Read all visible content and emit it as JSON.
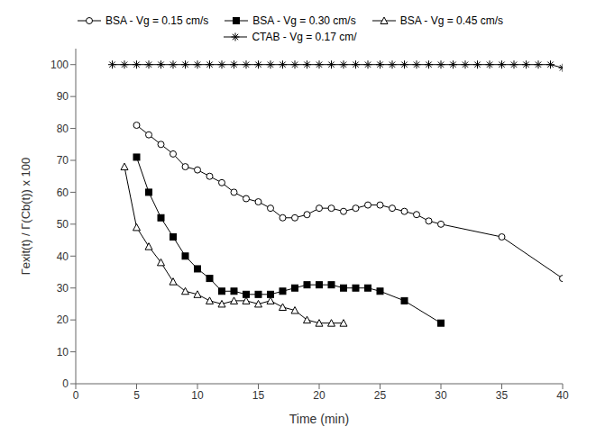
{
  "chart_data": {
    "type": "line",
    "x_label": "Time (min)",
    "y_label": "Γexit(t) / Γ(Cb(t)) x 100",
    "xlim": [
      0,
      40
    ],
    "ylim": [
      0,
      105
    ],
    "xticks": [
      0,
      5,
      10,
      15,
      20,
      25,
      30,
      35,
      40
    ],
    "yticks": [
      0,
      10,
      20,
      30,
      40,
      50,
      60,
      70,
      80,
      90,
      100
    ],
    "grid": false,
    "legend": "top",
    "series": [
      {
        "name": "BSA - Vg = 0.15 cm/s",
        "color": "#000000",
        "marker": "open_circle",
        "line_style": "solid",
        "x": [
          5,
          6,
          7,
          8,
          9,
          10,
          11,
          12,
          13,
          14,
          15,
          16,
          17,
          18,
          19,
          20,
          21,
          22,
          23,
          24,
          25,
          26,
          27,
          28,
          29,
          30,
          35,
          40
        ],
        "values": [
          81,
          78,
          75,
          72,
          68,
          67,
          65,
          63,
          60,
          58,
          57,
          55,
          52,
          52,
          53,
          55,
          55,
          54,
          55,
          56,
          56,
          55,
          54,
          53,
          51,
          50,
          46,
          33
        ]
      },
      {
        "name": "BSA - Vg = 0.30 cm/s",
        "color": "#000000",
        "marker": "square",
        "line_style": "solid",
        "x": [
          5,
          6,
          7,
          8,
          9,
          10,
          11,
          12,
          13,
          14,
          15,
          16,
          17,
          18,
          19,
          20,
          21,
          22,
          23,
          24,
          25,
          27,
          30
        ],
        "values": [
          71,
          60,
          52,
          46,
          40,
          36,
          33,
          29,
          29,
          28,
          28,
          28,
          29,
          30,
          31,
          31,
          31,
          30,
          30,
          30,
          29,
          26,
          19
        ]
      },
      {
        "name": "BSA - Vg = 0.45 cm/s",
        "color": "#000000",
        "marker": "open_triangle",
        "line_style": "solid",
        "x": [
          4,
          5,
          6,
          7,
          8,
          9,
          10,
          11,
          12,
          13,
          14,
          15,
          16,
          17,
          18,
          19,
          20,
          21,
          22
        ],
        "values": [
          68,
          49,
          43,
          38,
          32,
          29,
          28,
          26,
          25,
          26,
          26,
          25,
          26,
          24,
          23,
          20,
          19,
          19,
          19
        ]
      },
      {
        "name": "CTAB - Vg = 0.17 cm/",
        "color": "#000000",
        "marker": "asterisk",
        "line_style": "solid",
        "x": [
          3,
          4,
          5,
          6,
          7,
          8,
          9,
          10,
          11,
          12,
          13,
          14,
          15,
          16,
          17,
          18,
          19,
          20,
          21,
          22,
          23,
          24,
          25,
          26,
          27,
          28,
          29,
          30,
          31,
          32,
          33,
          34,
          35,
          36,
          37,
          38,
          39,
          40
        ],
        "values": [
          100,
          100,
          100,
          100,
          100,
          100,
          100,
          100,
          100,
          100,
          100,
          100,
          100,
          100,
          100,
          100,
          100,
          100,
          100,
          100,
          100,
          100,
          100,
          100,
          100,
          100,
          100,
          100,
          100,
          100,
          100,
          100,
          100,
          100,
          100,
          100,
          100,
          99
        ]
      }
    ]
  }
}
